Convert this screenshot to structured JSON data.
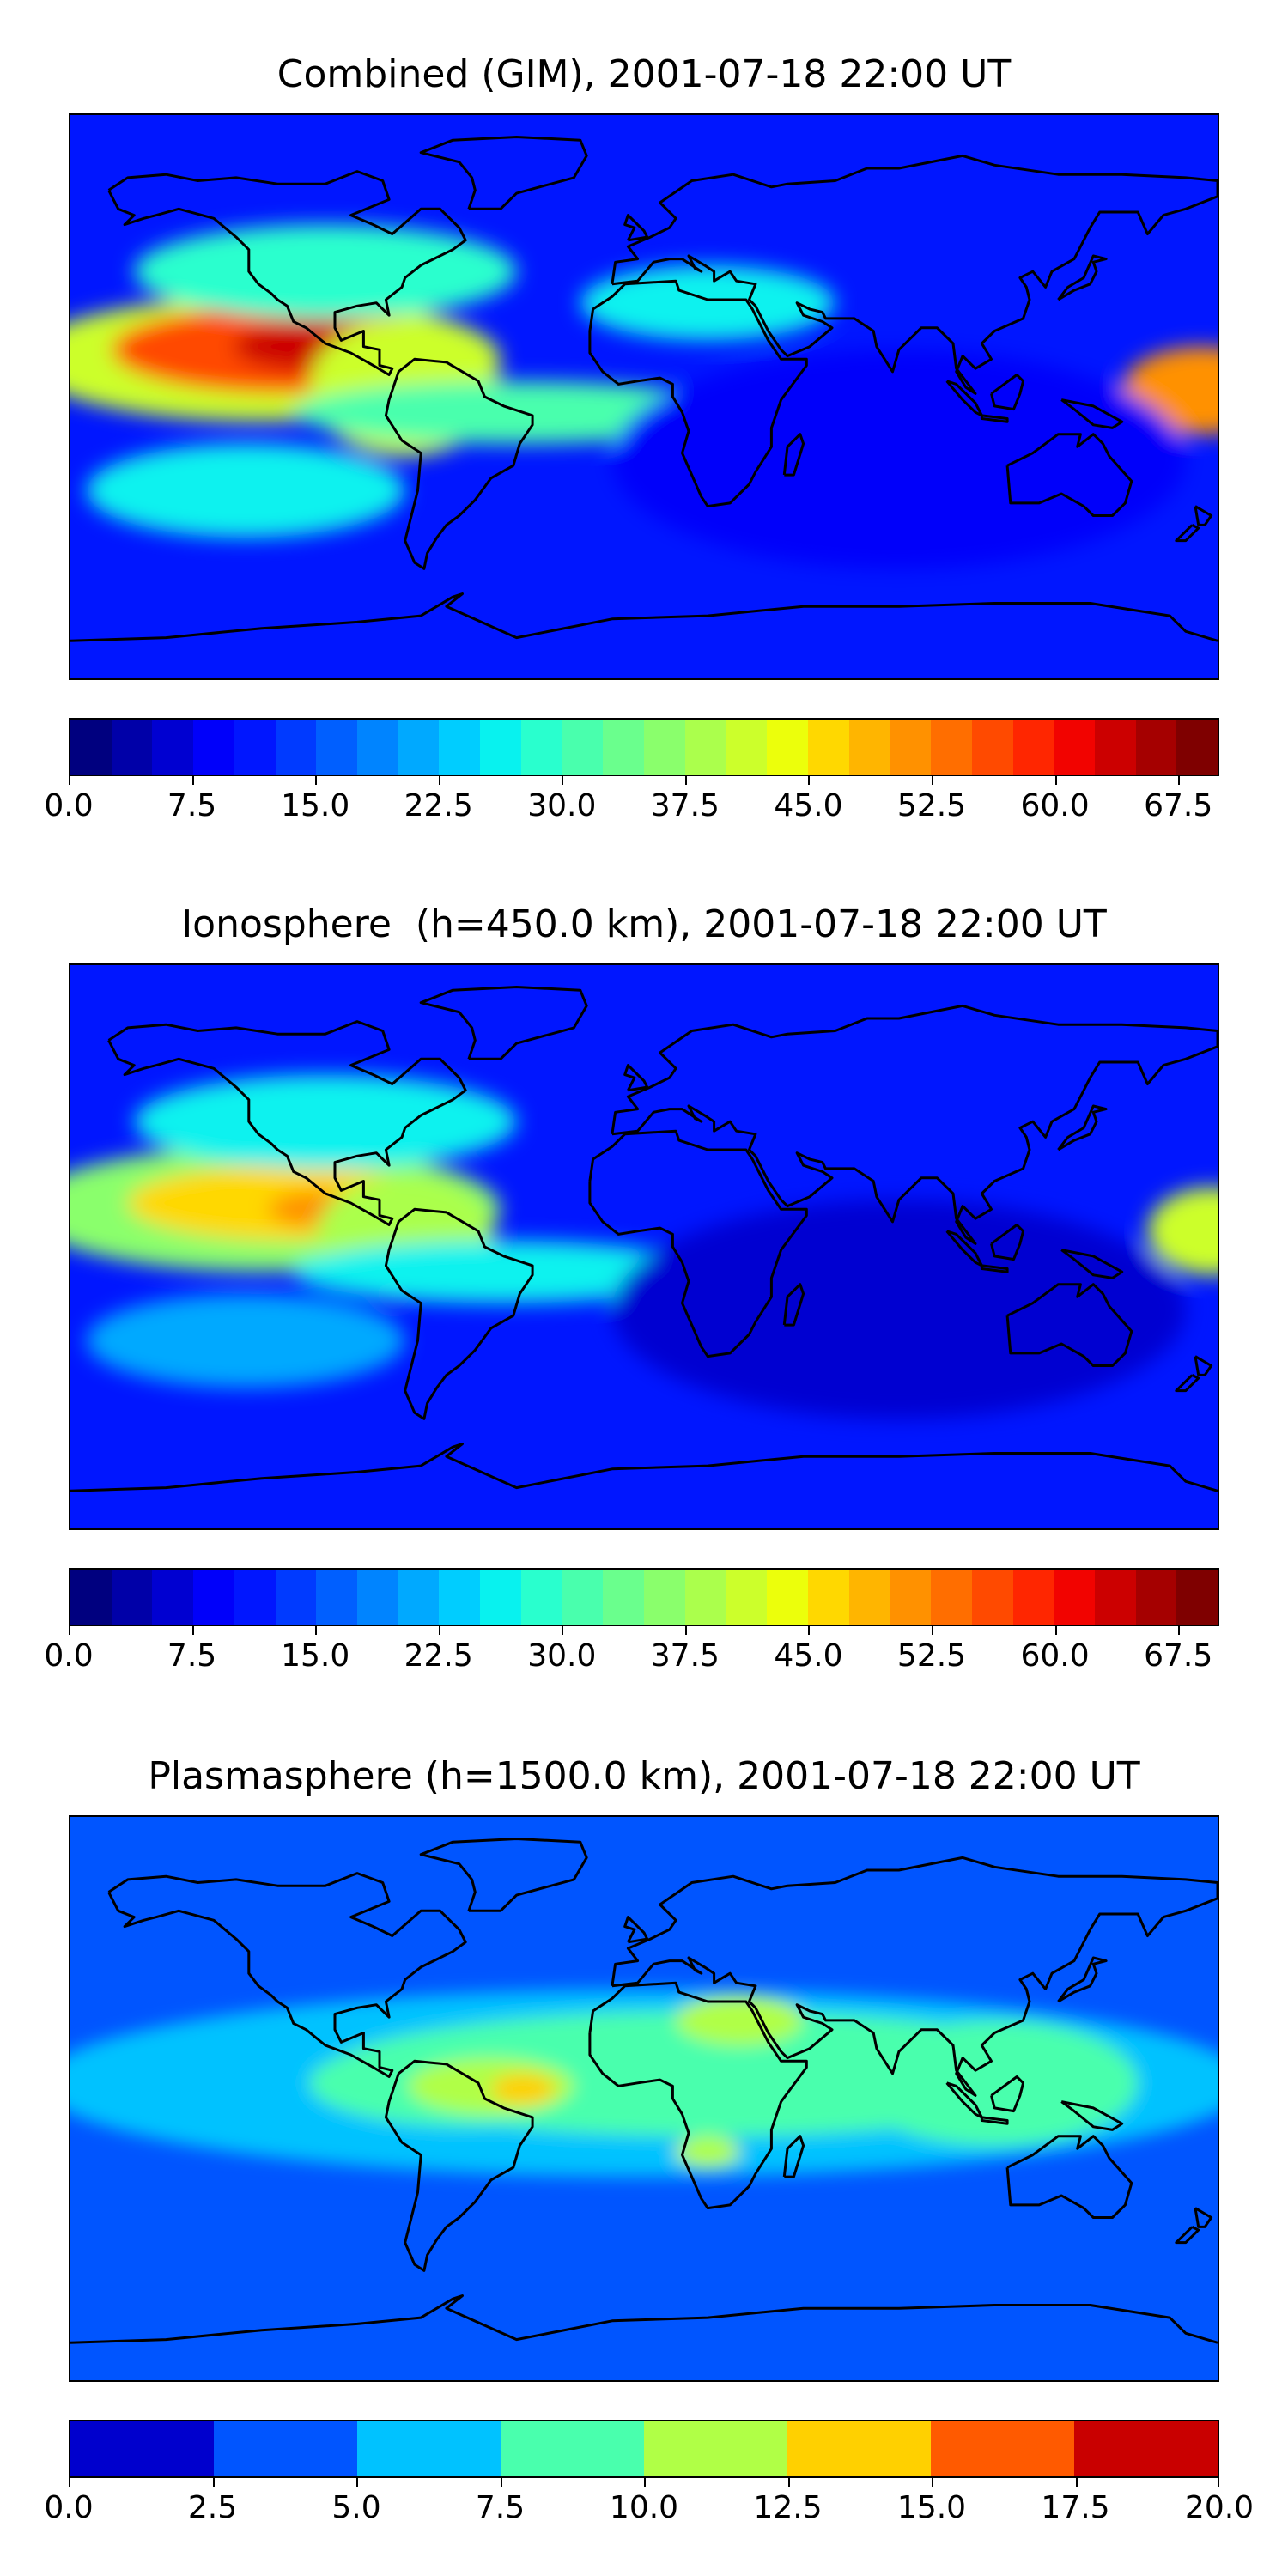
{
  "panels": [
    {
      "title": "Combined (GIM), 2001-07-18 22:00 UT",
      "colorbar": {
        "min": 0.0,
        "max": 70.0,
        "levels": 28,
        "ticks": [
          "0.0",
          "7.5",
          "15.0",
          "22.5",
          "30.0",
          "37.5",
          "45.0",
          "52.5",
          "60.0",
          "67.5"
        ],
        "tick_values": [
          0.0,
          7.5,
          15.0,
          22.5,
          30.0,
          37.5,
          45.0,
          52.5,
          60.0,
          67.5
        ],
        "colors": [
          "#00007f",
          "#0000a8",
          "#0000d1",
          "#0000fa",
          "#0016ff",
          "#003aff",
          "#005fff",
          "#0084ff",
          "#00a9ff",
          "#00cdff",
          "#08f2ef",
          "#29ffce",
          "#49ffad",
          "#6aff8d",
          "#8aff6c",
          "#abff4c",
          "#ccff2b",
          "#ecff0b",
          "#ffd800",
          "#ffb500",
          "#ff9100",
          "#ff6e00",
          "#ff4a00",
          "#ff2600",
          "#f20300",
          "#cc0000",
          "#a50000",
          "#7f0000"
        ]
      },
      "blobs": [
        {
          "lon": -120,
          "lat": 12,
          "rx": 75,
          "ry": 20,
          "value": 42
        },
        {
          "lon": -112,
          "lat": 15,
          "rx": 55,
          "ry": 14,
          "value": 55
        },
        {
          "lon": -103,
          "lat": 16,
          "rx": 26,
          "ry": 8,
          "value": 63
        },
        {
          "lon": -75,
          "lat": 3,
          "rx": 30,
          "ry": 22,
          "value": 40
        },
        {
          "lon": 175,
          "lat": 2,
          "rx": 25,
          "ry": 14,
          "value": 52
        },
        {
          "lon": -40,
          "lat": -5,
          "rx": 70,
          "ry": 10,
          "value": 30
        },
        {
          "lon": 20,
          "lat": 30,
          "rx": 40,
          "ry": 12,
          "value": 25
        },
        {
          "lon": -100,
          "lat": 40,
          "rx": 60,
          "ry": 15,
          "value": 28
        },
        {
          "lon": -125,
          "lat": -30,
          "rx": 50,
          "ry": 15,
          "value": 26
        },
        {
          "lon": 80,
          "lat": -20,
          "rx": 90,
          "ry": 35,
          "value": 8
        }
      ]
    },
    {
      "title": "Ionosphere  (h=450.0 km), 2001-07-18 22:00 UT",
      "colorbar": {
        "min": 0.0,
        "max": 70.0,
        "levels": 28,
        "ticks": [
          "0.0",
          "7.5",
          "15.0",
          "22.5",
          "30.0",
          "37.5",
          "45.0",
          "52.5",
          "60.0",
          "67.5"
        ],
        "tick_values": [
          0.0,
          7.5,
          15.0,
          22.5,
          30.0,
          37.5,
          45.0,
          52.5,
          60.0,
          67.5
        ],
        "colors": [
          "#00007f",
          "#0000a8",
          "#0000d1",
          "#0000fa",
          "#0016ff",
          "#003aff",
          "#005fff",
          "#0084ff",
          "#00a9ff",
          "#00cdff",
          "#08f2ef",
          "#29ffce",
          "#49ffad",
          "#6aff8d",
          "#8aff6c",
          "#abff4c",
          "#ccff2b",
          "#ecff0b",
          "#ffd800",
          "#ffb500",
          "#ff9100",
          "#ff6e00",
          "#ff4a00",
          "#ff2600",
          "#f20300",
          "#cc0000",
          "#a50000",
          "#7f0000"
        ]
      },
      "blobs": [
        {
          "lon": -120,
          "lat": 12,
          "rx": 75,
          "ry": 20,
          "value": 35
        },
        {
          "lon": -112,
          "lat": 14,
          "rx": 50,
          "ry": 12,
          "value": 45
        },
        {
          "lon": -100,
          "lat": 12,
          "rx": 18,
          "ry": 6,
          "value": 50
        },
        {
          "lon": -75,
          "lat": 3,
          "rx": 28,
          "ry": 20,
          "value": 38
        },
        {
          "lon": 178,
          "lat": 5,
          "rx": 20,
          "ry": 14,
          "value": 40
        },
        {
          "lon": -45,
          "lat": -8,
          "rx": 65,
          "ry": 10,
          "value": 25
        },
        {
          "lon": -100,
          "lat": 40,
          "rx": 60,
          "ry": 15,
          "value": 25
        },
        {
          "lon": -125,
          "lat": -30,
          "rx": 50,
          "ry": 15,
          "value": 22
        },
        {
          "lon": 80,
          "lat": -20,
          "rx": 90,
          "ry": 35,
          "value": 5
        }
      ]
    },
    {
      "title": "Plasmasphere (h=1500.0 km), 2001-07-18 22:00 UT",
      "colorbar": {
        "min": 0.0,
        "max": 20.0,
        "levels": 8,
        "ticks": [
          "0.0",
          "2.5",
          "5.0",
          "7.5",
          "10.0",
          "12.5",
          "15.0",
          "17.5",
          "20.0"
        ],
        "tick_values": [
          0.0,
          2.5,
          5.0,
          7.5,
          10.0,
          12.5,
          15.0,
          17.5,
          20.0
        ],
        "colors": [
          "#0000cd",
          "#0055ff",
          "#00c2ff",
          "#49ffad",
          "#b0ff46",
          "#ffd000",
          "#ff5a00",
          "#c90000"
        ]
      },
      "blobs": [
        {
          "lon": 0,
          "lat": 5,
          "rx": 190,
          "ry": 30,
          "value": 6
        },
        {
          "lon": 20,
          "lat": 8,
          "rx": 120,
          "ry": 20,
          "value": 8.5
        },
        {
          "lon": -55,
          "lat": 5,
          "rx": 50,
          "ry": 14,
          "value": 9
        },
        {
          "lon": -48,
          "lat": 4,
          "rx": 26,
          "ry": 9,
          "value": 11
        },
        {
          "lon": -38,
          "lat": 3,
          "rx": 10,
          "ry": 5,
          "value": 13
        },
        {
          "lon": 30,
          "lat": 25,
          "rx": 20,
          "ry": 8,
          "value": 11
        },
        {
          "lon": 20,
          "lat": -17,
          "rx": 10,
          "ry": 5,
          "value": 11
        },
        {
          "lon": 110,
          "lat": 5,
          "rx": 45,
          "ry": 20,
          "value": 8.5
        }
      ]
    }
  ],
  "colors": {
    "background": "#ffffff",
    "coastline": "#000000"
  }
}
